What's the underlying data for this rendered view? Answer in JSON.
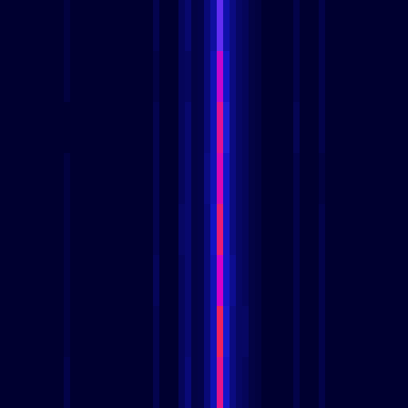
{
  "chart_data": {
    "type": "heatmap",
    "zlim": [
      0,
      10
    ],
    "tick_labels": false,
    "cells": [
      [
        0,
        0,
        0,
        0,
        0,
        0,
        0,
        0,
        0,
        0,
        0.3,
        0,
        0,
        0,
        0,
        0,
        0,
        0,
        0,
        0,
        0,
        0,
        0,
        0,
        0.6,
        0,
        0,
        0,
        0.8,
        1.2,
        0.4,
        0.5,
        1.4,
        2.2,
        5.5,
        2.4,
        1.6,
        1.0,
        0.8,
        0.4,
        0.3,
        0,
        0,
        0,
        0,
        0,
        0.5,
        0,
        0,
        0,
        0.5,
        0,
        0,
        0,
        0,
        0,
        0,
        0,
        0,
        0,
        0,
        0,
        0,
        0
      ],
      [
        0,
        0,
        0,
        0,
        0,
        0,
        0,
        0,
        0,
        0,
        0.3,
        0,
        0,
        0,
        0,
        0,
        0,
        0,
        0,
        0,
        0,
        0,
        0,
        0,
        0.4,
        0,
        0,
        0,
        0.8,
        0.9,
        0.4,
        0.5,
        1.4,
        2.6,
        6.8,
        3.0,
        1.6,
        1.0,
        0.8,
        0.4,
        0.3,
        0,
        0,
        0,
        0,
        0,
        0.5,
        0,
        0,
        0,
        0.5,
        0,
        0,
        0,
        0,
        0,
        0,
        0,
        0,
        0,
        0,
        0,
        0,
        0
      ],
      [
        0,
        0,
        0,
        0,
        0,
        0,
        0,
        0,
        0,
        0,
        0,
        0,
        0,
        0,
        0,
        0,
        0,
        0,
        0,
        0,
        0,
        0,
        0,
        0,
        0.6,
        0,
        0,
        0,
        0.8,
        1.2,
        0.4,
        0.5,
        1.4,
        2.6,
        7.5,
        3.4,
        1.6,
        1.0,
        0.8,
        0.4,
        0.3,
        0,
        0,
        0,
        0,
        0,
        0.7,
        0,
        0,
        0,
        0.5,
        0,
        0,
        0,
        0,
        0,
        0,
        0,
        0,
        0,
        0,
        0,
        0,
        0
      ],
      [
        0,
        0,
        0,
        0,
        0,
        0,
        0,
        0,
        0,
        0,
        0.3,
        0,
        0,
        0,
        0,
        0,
        0,
        0,
        0,
        0,
        0,
        0,
        0,
        0,
        0.6,
        0,
        0,
        0,
        0.8,
        1.2,
        0.4,
        0.5,
        1.6,
        2.6,
        7.2,
        3.0,
        1.6,
        1.0,
        0.8,
        0.4,
        0.3,
        0,
        0,
        0,
        0,
        0,
        0.5,
        0,
        0,
        0,
        0.3,
        0,
        0,
        0,
        0,
        0,
        0,
        0,
        0,
        0,
        0,
        0,
        0,
        0
      ],
      [
        0,
        0,
        0,
        0,
        0,
        0,
        0,
        0,
        0,
        0,
        0.3,
        0,
        0,
        0,
        0,
        0,
        0,
        0,
        0,
        0,
        0,
        0,
        0,
        0,
        0.6,
        0,
        0,
        0,
        1.0,
        1.2,
        0.4,
        0.5,
        1.4,
        2.9,
        7.8,
        3.0,
        1.6,
        1.0,
        0.8,
        0.4,
        0.3,
        0,
        0,
        0,
        0,
        0,
        0.5,
        0,
        0,
        0,
        0.5,
        0,
        0,
        0,
        0,
        0,
        0,
        0,
        0,
        0,
        0,
        0,
        0,
        0
      ],
      [
        0,
        0,
        0,
        0,
        0,
        0,
        0,
        0,
        0,
        0,
        0.3,
        0,
        0,
        0,
        0,
        0,
        0,
        0,
        0,
        0,
        0,
        0,
        0,
        0,
        0.8,
        0,
        0,
        0,
        0.8,
        1.2,
        0.4,
        0.5,
        1.4,
        2.6,
        7.0,
        3.0,
        1.9,
        1.0,
        0.8,
        0.4,
        0.3,
        0,
        0,
        0,
        0,
        0,
        0.5,
        0,
        0,
        0,
        0.5,
        0,
        0,
        0,
        0,
        0,
        0,
        0,
        0,
        0,
        0,
        0,
        0,
        0
      ],
      [
        0,
        0,
        0,
        0,
        0,
        0,
        0,
        0,
        0,
        0,
        0.3,
        0,
        0,
        0,
        0,
        0,
        0,
        0,
        0,
        0,
        0,
        0,
        0,
        0,
        0.6,
        0,
        0,
        0,
        0.8,
        1.2,
        0.4,
        0.5,
        1.4,
        2.6,
        8.0,
        3.2,
        1.6,
        1.0,
        1.0,
        0.4,
        0.3,
        0,
        0,
        0,
        0,
        0,
        0.5,
        0,
        0,
        0,
        0.5,
        0,
        0,
        0,
        0,
        0,
        0,
        0,
        0,
        0,
        0,
        0,
        0,
        0
      ],
      [
        0,
        0,
        0,
        0,
        0,
        0,
        0,
        0,
        0,
        0,
        0.5,
        0,
        0,
        0,
        0,
        0,
        0,
        0,
        0,
        0,
        0,
        0,
        0,
        0,
        0.6,
        0,
        0,
        0,
        0.8,
        1.4,
        0.4,
        0.5,
        1.4,
        2.6,
        7.6,
        3.0,
        1.6,
        1.0,
        0.8,
        0.4,
        0.3,
        0,
        0,
        0,
        0,
        0,
        0.5,
        0,
        0,
        0,
        0.5,
        0,
        0,
        0,
        0,
        0,
        0,
        0,
        0,
        0,
        0,
        0,
        0,
        0
      ]
    ]
  }
}
